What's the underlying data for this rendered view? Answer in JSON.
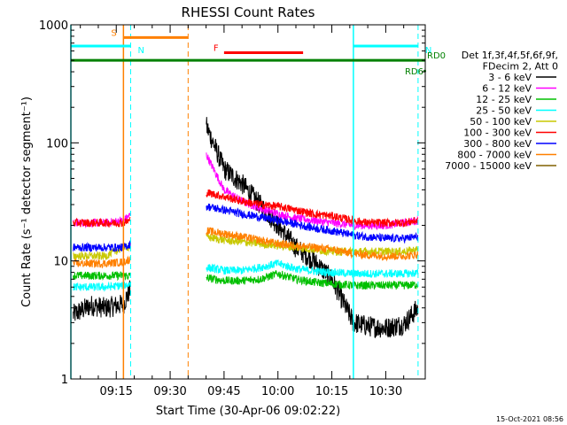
{
  "chart_data": {
    "type": "line",
    "title": "RHESSI Count Rates",
    "xlabel": "Start Time (30-Apr-06 09:02:22)",
    "ylabel": "Count Rate (s⁻¹ detector segment⁻¹)",
    "xlim": [
      "09:02:22",
      "10:41:00"
    ],
    "ylim": [
      1,
      1000
    ],
    "y_scale": "log",
    "grid": false,
    "legend_placement": "right",
    "x_tick_labels": [
      "09:15",
      "09:30",
      "09:45",
      "10:00",
      "10:15",
      "10:30"
    ],
    "y_tick_labels": [
      "1",
      "10",
      "100",
      "1000"
    ],
    "legend_header": [
      "Det 1f,3f,4f,5f,6f,9f,",
      "FDecim 2, Att 0"
    ],
    "timestamp": "15-Oct-2021 08:56",
    "data_gaps": [
      [
        "09:19",
        "09:40"
      ]
    ],
    "series": [
      {
        "name": "3 - 6 keV",
        "color": "#000000",
        "x": [
          "09:03",
          "09:08",
          "09:12",
          "09:17",
          "09:40",
          "09:45",
          "09:50",
          "09:55",
          "10:00",
          "10:05",
          "10:10",
          "10:15",
          "10:21",
          "10:25",
          "10:30",
          "10:35",
          "10:39"
        ],
        "y": [
          3.5,
          4.2,
          4.0,
          4.3,
          140,
          60,
          45,
          30,
          20,
          13,
          10,
          7,
          3,
          2.8,
          2.7,
          2.9,
          4
        ]
      },
      {
        "name": "6 - 12 keV",
        "color": "#ff00ff",
        "x": [
          "09:03",
          "09:08",
          "09:12",
          "09:17",
          "09:40",
          "09:45",
          "09:50",
          "09:55",
          "10:00",
          "10:05",
          "10:10",
          "10:15",
          "10:21",
          "10:25",
          "10:30",
          "10:35",
          "10:39"
        ],
        "y": [
          21,
          21,
          21,
          22,
          80,
          40,
          32,
          28,
          25,
          23,
          22,
          21,
          20,
          20,
          20,
          21,
          22
        ]
      },
      {
        "name": "12 - 25 keV",
        "color": "#00c000",
        "x": [
          "09:03",
          "09:08",
          "09:12",
          "09:17",
          "09:40",
          "09:45",
          "09:50",
          "09:55",
          "10:00",
          "10:05",
          "10:10",
          "10:15",
          "10:21",
          "10:25",
          "10:30",
          "10:35",
          "10:39"
        ],
        "y": [
          7.5,
          7.5,
          7.5,
          7.5,
          7.2,
          6.8,
          6.8,
          7.0,
          7.8,
          7.0,
          6.6,
          6.4,
          6.2,
          6.2,
          6.2,
          6.2,
          6.3
        ]
      },
      {
        "name": "25 - 50 keV",
        "color": "#00ffff",
        "x": [
          "09:03",
          "09:08",
          "09:12",
          "09:17",
          "09:40",
          "09:45",
          "09:50",
          "09:55",
          "10:00",
          "10:05",
          "10:10",
          "10:15",
          "10:21",
          "10:25",
          "10:30",
          "10:35",
          "10:39"
        ],
        "y": [
          6.0,
          6.0,
          6.0,
          6.2,
          8.8,
          8.3,
          8.3,
          8.8,
          9.5,
          8.6,
          8.2,
          8.0,
          7.8,
          7.8,
          7.8,
          7.8,
          7.9
        ]
      },
      {
        "name": "50 - 100 keV",
        "color": "#c8c800",
        "x": [
          "09:03",
          "09:08",
          "09:12",
          "09:17",
          "09:40",
          "09:45",
          "09:50",
          "09:55",
          "10:00",
          "10:05",
          "10:10",
          "10:15",
          "10:21",
          "10:25",
          "10:30",
          "10:35",
          "10:39"
        ],
        "y": [
          11,
          11,
          11,
          13,
          16,
          15,
          14.5,
          14,
          13.5,
          13,
          12.5,
          12,
          12,
          12,
          12,
          12,
          12.5
        ]
      },
      {
        "name": "100 - 300 keV",
        "color": "#ff0000",
        "x": [
          "09:03",
          "09:08",
          "09:12",
          "09:17",
          "09:40",
          "09:45",
          "09:50",
          "09:55",
          "10:00",
          "10:05",
          "10:10",
          "10:15",
          "10:21",
          "10:25",
          "10:30",
          "10:35",
          "10:39"
        ],
        "y": [
          21,
          21,
          21,
          21,
          38,
          35,
          32,
          30,
          29,
          27,
          25,
          24,
          22,
          21,
          21,
          21,
          22
        ]
      },
      {
        "name": "300 - 800 keV",
        "color": "#0000ff",
        "x": [
          "09:03",
          "09:08",
          "09:12",
          "09:17",
          "09:40",
          "09:45",
          "09:50",
          "09:55",
          "10:00",
          "10:05",
          "10:10",
          "10:15",
          "10:21",
          "10:25",
          "10:30",
          "10:35",
          "10:39"
        ],
        "y": [
          13,
          13,
          13,
          13,
          29,
          27,
          25,
          23.5,
          22,
          20.5,
          19,
          18,
          16.5,
          16,
          15.5,
          15.5,
          16
        ]
      },
      {
        "name": "800 - 7000 keV",
        "color": "#ff8000",
        "x": [
          "09:03",
          "09:08",
          "09:12",
          "09:17",
          "09:40",
          "09:45",
          "09:50",
          "09:55",
          "10:00",
          "10:05",
          "10:10",
          "10:15",
          "10:21",
          "10:25",
          "10:30",
          "10:35",
          "10:39"
        ],
        "y": [
          9.5,
          9.5,
          9.5,
          9.8,
          18,
          17,
          16,
          15,
          14,
          13.5,
          13,
          12.5,
          11.5,
          11.2,
          11,
          11,
          11.3
        ]
      },
      {
        "name": "7000 - 15000 keV",
        "color": "#806000",
        "x": [],
        "y": []
      }
    ],
    "annotations": [
      {
        "label": "S",
        "color": "#ff8000",
        "x_start": "09:17",
        "x_end": "09:35",
        "level": 780
      },
      {
        "label": "N",
        "color": "#00ffff",
        "x_start": "09:02:22",
        "x_end": "09:19",
        "level": 660
      },
      {
        "label": "N",
        "color": "#00ffff",
        "x_start": "10:21",
        "x_end": "10:39",
        "level": 660
      },
      {
        "label": "F",
        "color": "#ff0000",
        "x_start": "09:45",
        "x_end": "10:07",
        "level": 580
      },
      {
        "label": "RD0",
        "color": "#008000",
        "x_start": "09:02:22",
        "x_end": "10:41",
        "level": 500
      },
      {
        "label": "RD6",
        "color": "#008000",
        "x_start": "10:40",
        "x_end": "10:40",
        "level": 450
      }
    ],
    "vertical_markers": [
      {
        "time": "09:02:22",
        "color": "#00ffff",
        "style": "solid"
      },
      {
        "time": "09:17",
        "color": "#ff8000",
        "style": "solid"
      },
      {
        "time": "09:19",
        "color": "#00ffff",
        "style": "dashed"
      },
      {
        "time": "09:35",
        "color": "#ff8000",
        "style": "dashed"
      },
      {
        "time": "10:21",
        "color": "#00ffff",
        "style": "solid"
      },
      {
        "time": "10:39",
        "color": "#00ffff",
        "style": "dashed"
      }
    ]
  }
}
